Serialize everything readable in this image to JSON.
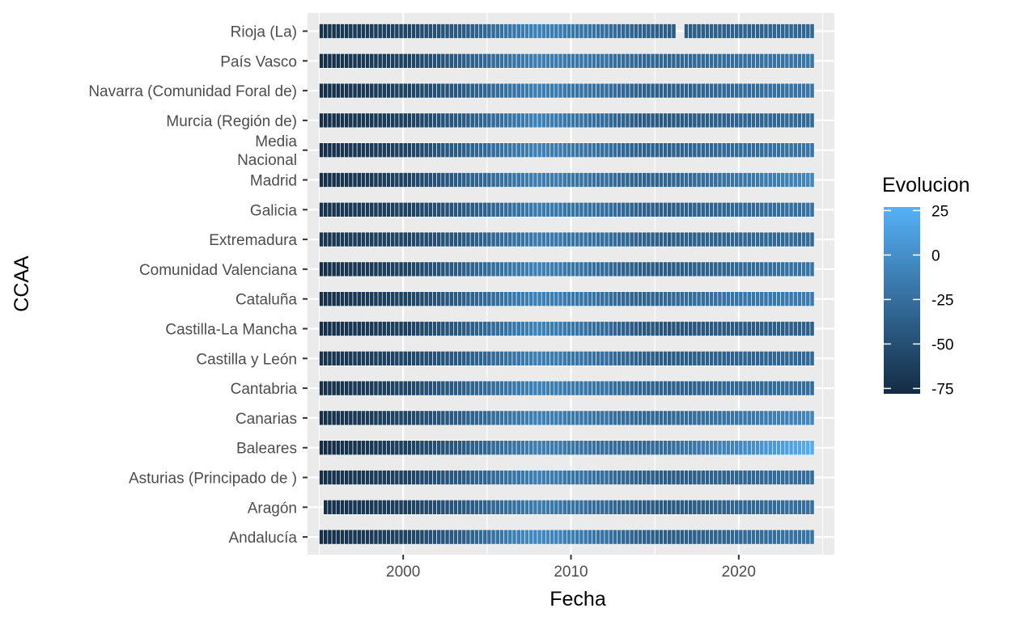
{
  "chart_data": {
    "type": "heatmap",
    "xlabel": "Fecha",
    "ylabel": "CCAA",
    "x_ticks": [
      2000,
      2010,
      2020
    ],
    "xlim": [
      1994.3,
      2025.7
    ],
    "x_start": 1995.0,
    "x_end": 2024.5,
    "step_years": 0.25,
    "categories": [
      "Andalucía",
      "Aragón",
      "Asturias (Principado de )",
      "Baleares",
      "Canarias",
      "Cantabria",
      "Castilla y León",
      "Castilla-La Mancha",
      "Cataluña",
      "Comunidad Valenciana",
      "Extremadura",
      "Galicia",
      "Madrid",
      "Media Nacional",
      "Murcia (Región de)",
      "Navarra (Comunidad Foral de)",
      "País Vasco",
      "Rioja (La)"
    ],
    "category_display": [
      [
        "Andalucía"
      ],
      [
        "Aragón"
      ],
      [
        "Asturias (Principado de )"
      ],
      [
        "Baleares"
      ],
      [
        "Canarias"
      ],
      [
        "Cantabria"
      ],
      [
        "Castilla y León"
      ],
      [
        "Castilla-La Mancha"
      ],
      [
        "Cataluña"
      ],
      [
        "Comunidad Valenciana"
      ],
      [
        "Extremadura"
      ],
      [
        "Galicia"
      ],
      [
        "Madrid"
      ],
      [
        "Media",
        "Nacional"
      ],
      [
        "Murcia (Región de)"
      ],
      [
        "Navarra (Comunidad Foral de)"
      ],
      [
        "País Vasco"
      ],
      [
        "Rioja (La)"
      ]
    ],
    "series": [
      {
        "name": "Andalucía",
        "x_start": 1995.0,
        "x_end": 2024.5,
        "gaps": [],
        "points": [
          [
            1995,
            -75
          ],
          [
            2000,
            -60
          ],
          [
            2004,
            -35
          ],
          [
            2007.5,
            -5
          ],
          [
            2008.5,
            -5
          ],
          [
            2012,
            -22
          ],
          [
            2014,
            -35
          ],
          [
            2016,
            -40
          ],
          [
            2020,
            -30
          ],
          [
            2024.5,
            -20
          ]
        ]
      },
      {
        "name": "Aragón",
        "x_start": 1995.25,
        "x_end": 2024.5,
        "gaps": [],
        "points": [
          [
            1995,
            -75
          ],
          [
            2000,
            -62
          ],
          [
            2004,
            -40
          ],
          [
            2008,
            -15
          ],
          [
            2012,
            -28
          ],
          [
            2014,
            -38
          ],
          [
            2016,
            -42
          ],
          [
            2020,
            -32
          ],
          [
            2024.5,
            -24
          ]
        ]
      },
      {
        "name": "Asturias (Principado de )",
        "x_start": 1995.0,
        "x_end": 2024.5,
        "gaps": [],
        "points": [
          [
            1995,
            -75
          ],
          [
            2000,
            -60
          ],
          [
            2004,
            -38
          ],
          [
            2008,
            -12
          ],
          [
            2012,
            -25
          ],
          [
            2014,
            -36
          ],
          [
            2016,
            -40
          ],
          [
            2020,
            -32
          ],
          [
            2024.5,
            -25
          ]
        ]
      },
      {
        "name": "Baleares",
        "x_start": 1995.0,
        "x_end": 2024.5,
        "gaps": [],
        "points": [
          [
            1995,
            -78
          ],
          [
            2000,
            -62
          ],
          [
            2004,
            -38
          ],
          [
            2008,
            -12
          ],
          [
            2012,
            -25
          ],
          [
            2014,
            -30
          ],
          [
            2016,
            -25
          ],
          [
            2020,
            -5
          ],
          [
            2022,
            8
          ],
          [
            2024.5,
            25
          ]
        ]
      },
      {
        "name": "Canarias",
        "x_start": 1995.0,
        "x_end": 2024.5,
        "gaps": [],
        "points": [
          [
            1995,
            -75
          ],
          [
            2000,
            -58
          ],
          [
            2004,
            -35
          ],
          [
            2008,
            -10
          ],
          [
            2012,
            -22
          ],
          [
            2014,
            -30
          ],
          [
            2016,
            -30
          ],
          [
            2020,
            -20
          ],
          [
            2024.5,
            -5
          ]
        ]
      },
      {
        "name": "Cantabria",
        "x_start": 1995.0,
        "x_end": 2024.5,
        "gaps": [],
        "points": [
          [
            1995,
            -75
          ],
          [
            2000,
            -58
          ],
          [
            2004,
            -35
          ],
          [
            2008,
            -10
          ],
          [
            2012,
            -22
          ],
          [
            2014,
            -32
          ],
          [
            2016,
            -36
          ],
          [
            2020,
            -30
          ],
          [
            2024.5,
            -26
          ]
        ]
      },
      {
        "name": "Castilla y León",
        "x_start": 1995.0,
        "x_end": 2024.5,
        "gaps": [],
        "points": [
          [
            1995,
            -72
          ],
          [
            2000,
            -58
          ],
          [
            2004,
            -38
          ],
          [
            2008,
            -12
          ],
          [
            2012,
            -25
          ],
          [
            2014,
            -36
          ],
          [
            2016,
            -40
          ],
          [
            2020,
            -34
          ],
          [
            2024.5,
            -30
          ]
        ]
      },
      {
        "name": "Castilla-La Mancha",
        "x_start": 1995.0,
        "x_end": 2024.5,
        "gaps": [],
        "points": [
          [
            1995,
            -75
          ],
          [
            2000,
            -62
          ],
          [
            2004,
            -38
          ],
          [
            2008,
            -10
          ],
          [
            2012,
            -28
          ],
          [
            2014,
            -42
          ],
          [
            2016,
            -46
          ],
          [
            2020,
            -40
          ],
          [
            2024.5,
            -36
          ]
        ]
      },
      {
        "name": "Cataluña",
        "x_start": 1995.0,
        "x_end": 2024.5,
        "gaps": [],
        "points": [
          [
            1995,
            -75
          ],
          [
            2000,
            -60
          ],
          [
            2004,
            -35
          ],
          [
            2008,
            -10
          ],
          [
            2012,
            -25
          ],
          [
            2014,
            -35
          ],
          [
            2016,
            -30
          ],
          [
            2020,
            -20
          ],
          [
            2024.5,
            -15
          ]
        ]
      },
      {
        "name": "Comunidad Valenciana",
        "x_start": 1995.0,
        "x_end": 2024.5,
        "gaps": [],
        "points": [
          [
            1995,
            -75
          ],
          [
            2000,
            -60
          ],
          [
            2004,
            -35
          ],
          [
            2008,
            -10
          ],
          [
            2012,
            -28
          ],
          [
            2014,
            -38
          ],
          [
            2016,
            -40
          ],
          [
            2020,
            -30
          ],
          [
            2024.5,
            -20
          ]
        ]
      },
      {
        "name": "Extremadura",
        "x_start": 1995.0,
        "x_end": 2024.5,
        "gaps": [],
        "points": [
          [
            1995,
            -70
          ],
          [
            2000,
            -58
          ],
          [
            2004,
            -40
          ],
          [
            2008,
            -15
          ],
          [
            2012,
            -25
          ],
          [
            2014,
            -35
          ],
          [
            2016,
            -38
          ],
          [
            2020,
            -32
          ],
          [
            2024.5,
            -28
          ]
        ]
      },
      {
        "name": "Galicia",
        "x_start": 1995.0,
        "x_end": 2024.5,
        "gaps": [],
        "points": [
          [
            1995,
            -72
          ],
          [
            2000,
            -60
          ],
          [
            2004,
            -40
          ],
          [
            2008,
            -15
          ],
          [
            2012,
            -25
          ],
          [
            2014,
            -35
          ],
          [
            2016,
            -38
          ],
          [
            2020,
            -30
          ],
          [
            2024.5,
            -22
          ]
        ]
      },
      {
        "name": "Madrid",
        "x_start": 1995.0,
        "x_end": 2024.5,
        "gaps": [],
        "points": [
          [
            1995,
            -75
          ],
          [
            2000,
            -60
          ],
          [
            2004,
            -35
          ],
          [
            2008,
            -12
          ],
          [
            2012,
            -25
          ],
          [
            2014,
            -35
          ],
          [
            2016,
            -32
          ],
          [
            2020,
            -20
          ],
          [
            2024.5,
            -5
          ]
        ]
      },
      {
        "name": "Media Nacional",
        "x_start": 1995.0,
        "x_end": 2024.5,
        "gaps": [],
        "points": [
          [
            1995,
            -75
          ],
          [
            2000,
            -60
          ],
          [
            2004,
            -35
          ],
          [
            2008,
            -10
          ],
          [
            2012,
            -25
          ],
          [
            2014,
            -35
          ],
          [
            2016,
            -35
          ],
          [
            2020,
            -28
          ],
          [
            2024.5,
            -20
          ]
        ]
      },
      {
        "name": "Murcia (Región de)",
        "x_start": 1995.0,
        "x_end": 2024.5,
        "gaps": [],
        "points": [
          [
            1995,
            -75
          ],
          [
            2000,
            -62
          ],
          [
            2004,
            -38
          ],
          [
            2008,
            -10
          ],
          [
            2012,
            -28
          ],
          [
            2014,
            -40
          ],
          [
            2016,
            -42
          ],
          [
            2020,
            -34
          ],
          [
            2024.5,
            -28
          ]
        ]
      },
      {
        "name": "Navarra (Comunidad Foral de)",
        "x_start": 1995.0,
        "x_end": 2024.5,
        "gaps": [],
        "points": [
          [
            1995,
            -75
          ],
          [
            2000,
            -60
          ],
          [
            2004,
            -38
          ],
          [
            2008,
            -12
          ],
          [
            2012,
            -25
          ],
          [
            2014,
            -35
          ],
          [
            2016,
            -36
          ],
          [
            2020,
            -28
          ],
          [
            2024.5,
            -20
          ]
        ]
      },
      {
        "name": "País Vasco",
        "x_start": 1995.0,
        "x_end": 2024.5,
        "gaps": [],
        "points": [
          [
            1995,
            -75
          ],
          [
            2000,
            -60
          ],
          [
            2004,
            -36
          ],
          [
            2008,
            -12
          ],
          [
            2012,
            -22
          ],
          [
            2014,
            -30
          ],
          [
            2016,
            -32
          ],
          [
            2020,
            -25
          ],
          [
            2024.5,
            -18
          ]
        ]
      },
      {
        "name": "Rioja (La)",
        "x_start": 1995.0,
        "x_end": 2024.5,
        "gaps": [
          [
            2016.25,
            2016.75
          ]
        ],
        "points": [
          [
            1995,
            -72
          ],
          [
            2000,
            -58
          ],
          [
            2004,
            -38
          ],
          [
            2007,
            -15
          ],
          [
            2008,
            -10
          ],
          [
            2012,
            -25
          ],
          [
            2014,
            -35
          ],
          [
            2016,
            -40
          ],
          [
            2020,
            -35
          ],
          [
            2024.5,
            -30
          ]
        ]
      }
    ],
    "legend": {
      "title": "Evolucion",
      "placement": "right",
      "labels": [
        25,
        0,
        -25,
        -50,
        -75
      ],
      "range": [
        -78,
        27
      ]
    },
    "colors": {
      "low": "#132B43",
      "high": "#56B1F7",
      "panel": "#EBEBEB",
      "grid": "#FFFFFF",
      "tile_outline": "#FFFFFF"
    }
  }
}
